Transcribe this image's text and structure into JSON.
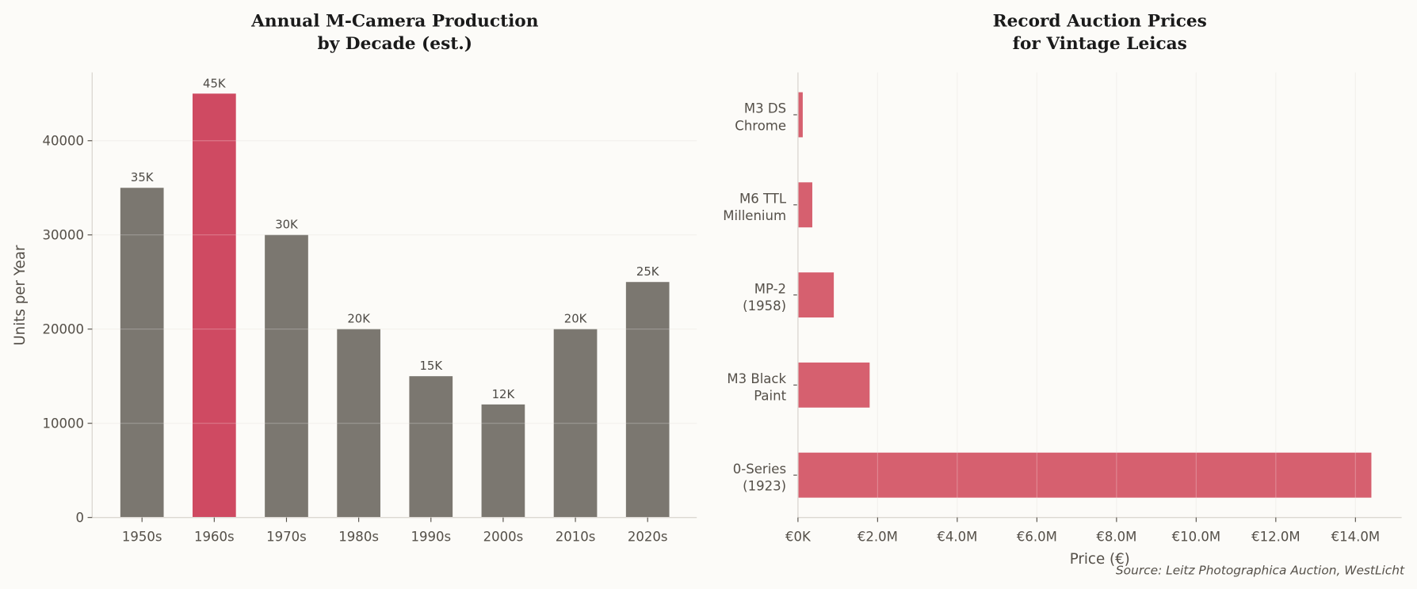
{
  "colors": {
    "background": "#fcfbf8",
    "bar_gray": "#7b7770",
    "bar_highlight": "#cf4a62",
    "bar_auction": "#d6606f",
    "axis": "#dcd8d2",
    "grid": "#efede9"
  },
  "chart_data": [
    {
      "type": "bar",
      "title": "Annual M-Camera Production\nby Decade (est.)",
      "title_lines": [
        "Annual M-Camera Production",
        "by Decade (est.)"
      ],
      "xlabel": "",
      "ylabel": "Units per Year",
      "categories": [
        "1950s",
        "1960s",
        "1970s",
        "1980s",
        "1990s",
        "2000s",
        "2010s",
        "2020s"
      ],
      "values": [
        35000,
        45000,
        30000,
        20000,
        15000,
        12000,
        20000,
        25000
      ],
      "data_labels": [
        "35K",
        "45K",
        "30K",
        "20K",
        "15K",
        "12K",
        "20K",
        "25K"
      ],
      "highlight": "1960s",
      "ylim": [
        0,
        47250
      ],
      "yticks": [
        0,
        10000,
        20000,
        30000,
        40000
      ],
      "ytick_labels": [
        "0",
        "10000",
        "20000",
        "30000",
        "40000"
      ],
      "grid": "y"
    },
    {
      "type": "bar",
      "orientation": "horizontal",
      "title": "Record Auction Prices\nfor Vintage Leicas",
      "title_lines": [
        "Record Auction Prices",
        "for Vintage Leicas"
      ],
      "xlabel": "Price (€)",
      "ylabel": "",
      "categories": [
        [
          "0-Series",
          "(1923)"
        ],
        [
          "M3 Black",
          "Paint"
        ],
        [
          "MP-2",
          "(1958)"
        ],
        [
          "M6 TTL",
          "Millenium"
        ],
        [
          "M3 DS",
          "Chrome"
        ]
      ],
      "values": [
        14400000,
        1800000,
        900000,
        360000,
        120000
      ],
      "xlim": [
        0,
        15160000
      ],
      "xticks": [
        0,
        2000000,
        4000000,
        6000000,
        8000000,
        10000000,
        12000000,
        14000000
      ],
      "xtick_labels": [
        "€0K",
        "€2.0M",
        "€4.0M",
        "€6.0M",
        "€8.0M",
        "€10.0M",
        "€12.0M",
        "€14.0M"
      ],
      "grid": "x"
    }
  ],
  "source": "Source: Leitz Photographica Auction, WestLicht"
}
